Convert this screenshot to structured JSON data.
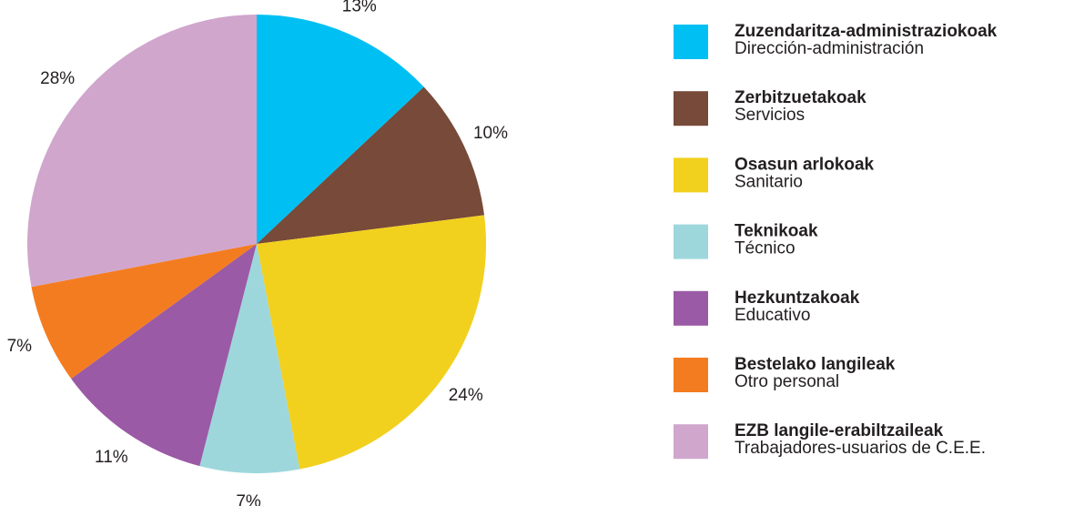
{
  "chart_data": {
    "type": "pie",
    "categories": [
      "Zuzendaritza-administraziokoak",
      "Zerbitzuetakoak",
      "Osasun arlokoak",
      "Teknikoak",
      "Hezkuntzakoak",
      "Bestelako langileak",
      "EZB langile-erabiltzaileak"
    ],
    "subcategories": [
      "Dirección-administración",
      "Servicios",
      "Sanitario",
      "Técnico",
      "Educativo",
      "Otro personal",
      "Trabajadores-usuarios de C.E.E."
    ],
    "values": [
      13,
      10,
      24,
      7,
      11,
      7,
      28
    ],
    "value_labels": [
      "13%",
      "10%",
      "24%",
      "7%",
      "11%",
      "7%",
      "28%"
    ],
    "colors": [
      "#00c0f3",
      "#774a39",
      "#f2d01e",
      "#9dd7dc",
      "#9a5aa5",
      "#f47c20",
      "#d0a6cd"
    ]
  }
}
